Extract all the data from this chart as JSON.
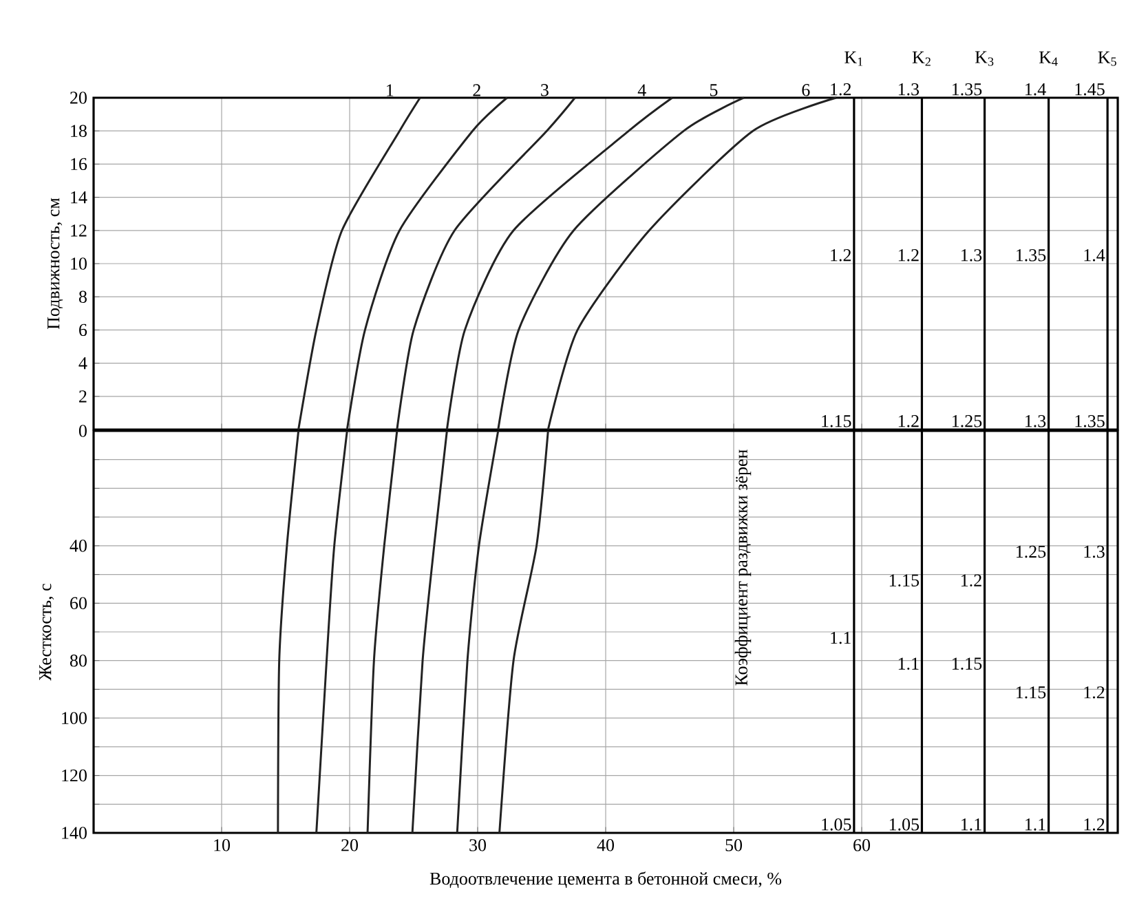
{
  "chart_data": [
    {
      "type": "line",
      "ylabel": "Подвижность, см",
      "xlim": [
        0,
        80
      ],
      "ylim": [
        0,
        20
      ],
      "xticks": [
        10,
        20,
        30,
        40,
        50,
        60
      ],
      "yticks": [
        {
          "value": 0,
          "label": null
        },
        2,
        4,
        6,
        8,
        10,
        12,
        14,
        16,
        18,
        20
      ],
      "tick_labels": "y",
      "grid": true,
      "marker": "none",
      "line_style": "solid",
      "series": [
        {
          "name": "1",
          "color": "#222222",
          "x": [
            25.5,
            23.9,
            19.4,
            17.4,
            16.0
          ],
          "values": [
            20,
            18,
            12,
            6,
            0
          ]
        },
        {
          "name": "2",
          "color": "#222222",
          "x": [
            32.3,
            29.6,
            23.9,
            21.2,
            19.8
          ],
          "values": [
            20,
            18,
            12,
            6,
            0
          ]
        },
        {
          "name": "3",
          "color": "#222222",
          "x": [
            37.6,
            35.4,
            28.2,
            25.0,
            23.7
          ],
          "values": [
            20,
            18,
            12,
            6,
            0
          ]
        },
        {
          "name": "4",
          "color": "#222222",
          "x": [
            45.2,
            41.8,
            32.8,
            29.0,
            27.6
          ],
          "values": [
            20,
            18,
            12,
            6,
            0
          ]
        },
        {
          "name": "5",
          "color": "#222222",
          "x": [
            50.8,
            46.1,
            37.5,
            33.2,
            31.6
          ],
          "values": [
            20,
            18,
            12,
            6,
            0
          ]
        },
        {
          "name": "6",
          "color": "#222222",
          "x": [
            58.0,
            51.5,
            43.4,
            37.8,
            35.5
          ],
          "values": [
            20,
            18,
            12,
            6,
            0
          ]
        }
      ],
      "ref_lines": [
        {
          "axis": "x",
          "value": 59.4,
          "label": "K$_{1}$"
        },
        {
          "axis": "x",
          "value": 64.7,
          "label": "K$_{2}$"
        },
        {
          "axis": "x",
          "value": 69.6,
          "label": "K$_{3}$"
        },
        {
          "axis": "x",
          "value": 74.6,
          "label": "K$_{4}$"
        },
        {
          "axis": "x",
          "value": 79.2,
          "label": "K$_{5}$"
        }
      ],
      "annotations": [
        {
          "text": "1.2",
          "x": 59.4,
          "y": 20
        },
        {
          "text": "1.3",
          "x": 64.7,
          "y": 20
        },
        {
          "text": "1.35",
          "x": 69.6,
          "y": 20
        },
        {
          "text": "1.4",
          "x": 74.6,
          "y": 20
        },
        {
          "text": "1.45",
          "x": 79.2,
          "y": 20
        },
        {
          "text": "1.2",
          "x": 59.4,
          "y": 10
        },
        {
          "text": "1.2",
          "x": 64.7,
          "y": 10
        },
        {
          "text": "1.3",
          "x": 69.6,
          "y": 10
        },
        {
          "text": "1.35",
          "x": 74.6,
          "y": 10
        },
        {
          "text": "1.4",
          "x": 79.2,
          "y": 10
        },
        {
          "text": "1.15",
          "x": 59.4,
          "y": 0
        },
        {
          "text": "1.2",
          "x": 64.7,
          "y": 0
        },
        {
          "text": "1.25",
          "x": 69.6,
          "y": 0
        },
        {
          "text": "1.3",
          "x": 74.6,
          "y": 0
        },
        {
          "text": "1.35",
          "x": 79.2,
          "y": 0
        }
      ]
    },
    {
      "type": "line",
      "xlabel": "Водоотвлечение цемента в бетонной смеси, %",
      "ylabel": "Жесткость, с",
      "xlim": [
        0,
        80
      ],
      "ylim": [
        140,
        0
      ],
      "xticks": [
        10,
        20,
        30,
        40,
        50,
        60
      ],
      "yticks": [
        0,
        {
          "value": 10,
          "label": null
        },
        {
          "value": 20,
          "label": null
        },
        {
          "value": 30,
          "label": null
        },
        40,
        {
          "value": 50,
          "label": null
        },
        60,
        {
          "value": 70,
          "label": null
        },
        80,
        {
          "value": 90,
          "label": null
        },
        100,
        {
          "value": 110,
          "label": null
        },
        120,
        {
          "value": 130,
          "label": null
        },
        140
      ],
      "grid": true,
      "marker": "none",
      "line_style": "solid",
      "series": [
        {
          "color": "#222222",
          "x": [
            16.0,
            15.1,
            14.5,
            14.4
          ],
          "values": [
            0,
            40,
            80,
            140
          ]
        },
        {
          "color": "#222222",
          "x": [
            19.8,
            18.8,
            18.2,
            17.4
          ],
          "values": [
            0,
            40,
            80,
            140
          ]
        },
        {
          "color": "#222222",
          "x": [
            23.7,
            22.7,
            21.9,
            21.4
          ],
          "values": [
            0,
            40,
            80,
            140
          ]
        },
        {
          "color": "#222222",
          "x": [
            27.6,
            26.6,
            25.7,
            24.9
          ],
          "values": [
            0,
            40,
            80,
            140
          ]
        },
        {
          "color": "#222222",
          "x": [
            31.6,
            30.1,
            29.2,
            28.4
          ],
          "values": [
            0,
            40,
            80,
            140
          ]
        },
        {
          "color": "#222222",
          "x": [
            35.5,
            34.6,
            32.8,
            31.7
          ],
          "values": [
            0,
            40,
            80,
            140
          ]
        }
      ],
      "ref_lines": [
        {
          "axis": "x",
          "value": 59.4
        },
        {
          "axis": "x",
          "value": 64.7
        },
        {
          "axis": "x",
          "value": 69.6
        },
        {
          "axis": "x",
          "value": 74.6
        },
        {
          "axis": "x",
          "value": 79.2
        }
      ],
      "annotations": [
        "Коэффициент раздвижки зёрен",
        {
          "text": "1.1",
          "x": 59.4,
          "y": 75
        },
        {
          "text": "1.15",
          "x": 64.7,
          "y": 55
        },
        {
          "text": "1.2",
          "x": 69.6,
          "y": 55
        },
        {
          "text": "1.25",
          "x": 74.6,
          "y": 45
        },
        {
          "text": "1.3",
          "x": 79.2,
          "y": 45
        },
        {
          "text": "1.1",
          "x": 64.7,
          "y": 84
        },
        {
          "text": "1.15",
          "x": 69.6,
          "y": 84
        },
        {
          "text": "1.15",
          "x": 74.6,
          "y": 94
        },
        {
          "text": "1.2",
          "x": 79.2,
          "y": 94
        },
        {
          "text": "1.05",
          "x": 59.4,
          "y": 140
        },
        {
          "text": "1.05",
          "x": 64.7,
          "y": 140
        },
        {
          "text": "1.1",
          "x": 69.6,
          "y": 140
        },
        {
          "text": "1.1",
          "x": 74.6,
          "y": 140
        },
        {
          "text": "1.2",
          "x": 79.2,
          "y": 140
        }
      ]
    }
  ]
}
